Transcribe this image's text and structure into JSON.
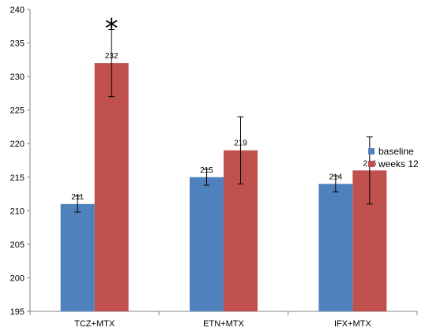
{
  "chart_data": {
    "type": "bar",
    "categories": [
      "TCZ+MTX",
      "ETN+MTX",
      "IFX+MTX"
    ],
    "series": [
      {
        "name": "baseline",
        "values": [
          211,
          215,
          214
        ],
        "error_low": [
          209.8,
          213.8,
          212.8
        ],
        "error_high": [
          212.2,
          216.2,
          215.2
        ]
      },
      {
        "name": "weeks 12",
        "values": [
          232,
          219,
          216
        ],
        "error_low": [
          227,
          214,
          211
        ],
        "error_high": [
          237,
          224,
          221
        ]
      }
    ],
    "data_labels": [
      [
        "211",
        "215",
        "214"
      ],
      [
        "232",
        "219",
        "216"
      ]
    ],
    "annotation": "*",
    "ylim": [
      195,
      240
    ],
    "yticks": [
      195,
      200,
      205,
      210,
      215,
      220,
      225,
      230,
      235,
      240
    ],
    "legend_position": "right",
    "grid": false,
    "title": "",
    "xlabel": "",
    "ylabel": "",
    "colors": {
      "baseline": "#4F81BD",
      "weeks 12": "#C0504D"
    }
  }
}
